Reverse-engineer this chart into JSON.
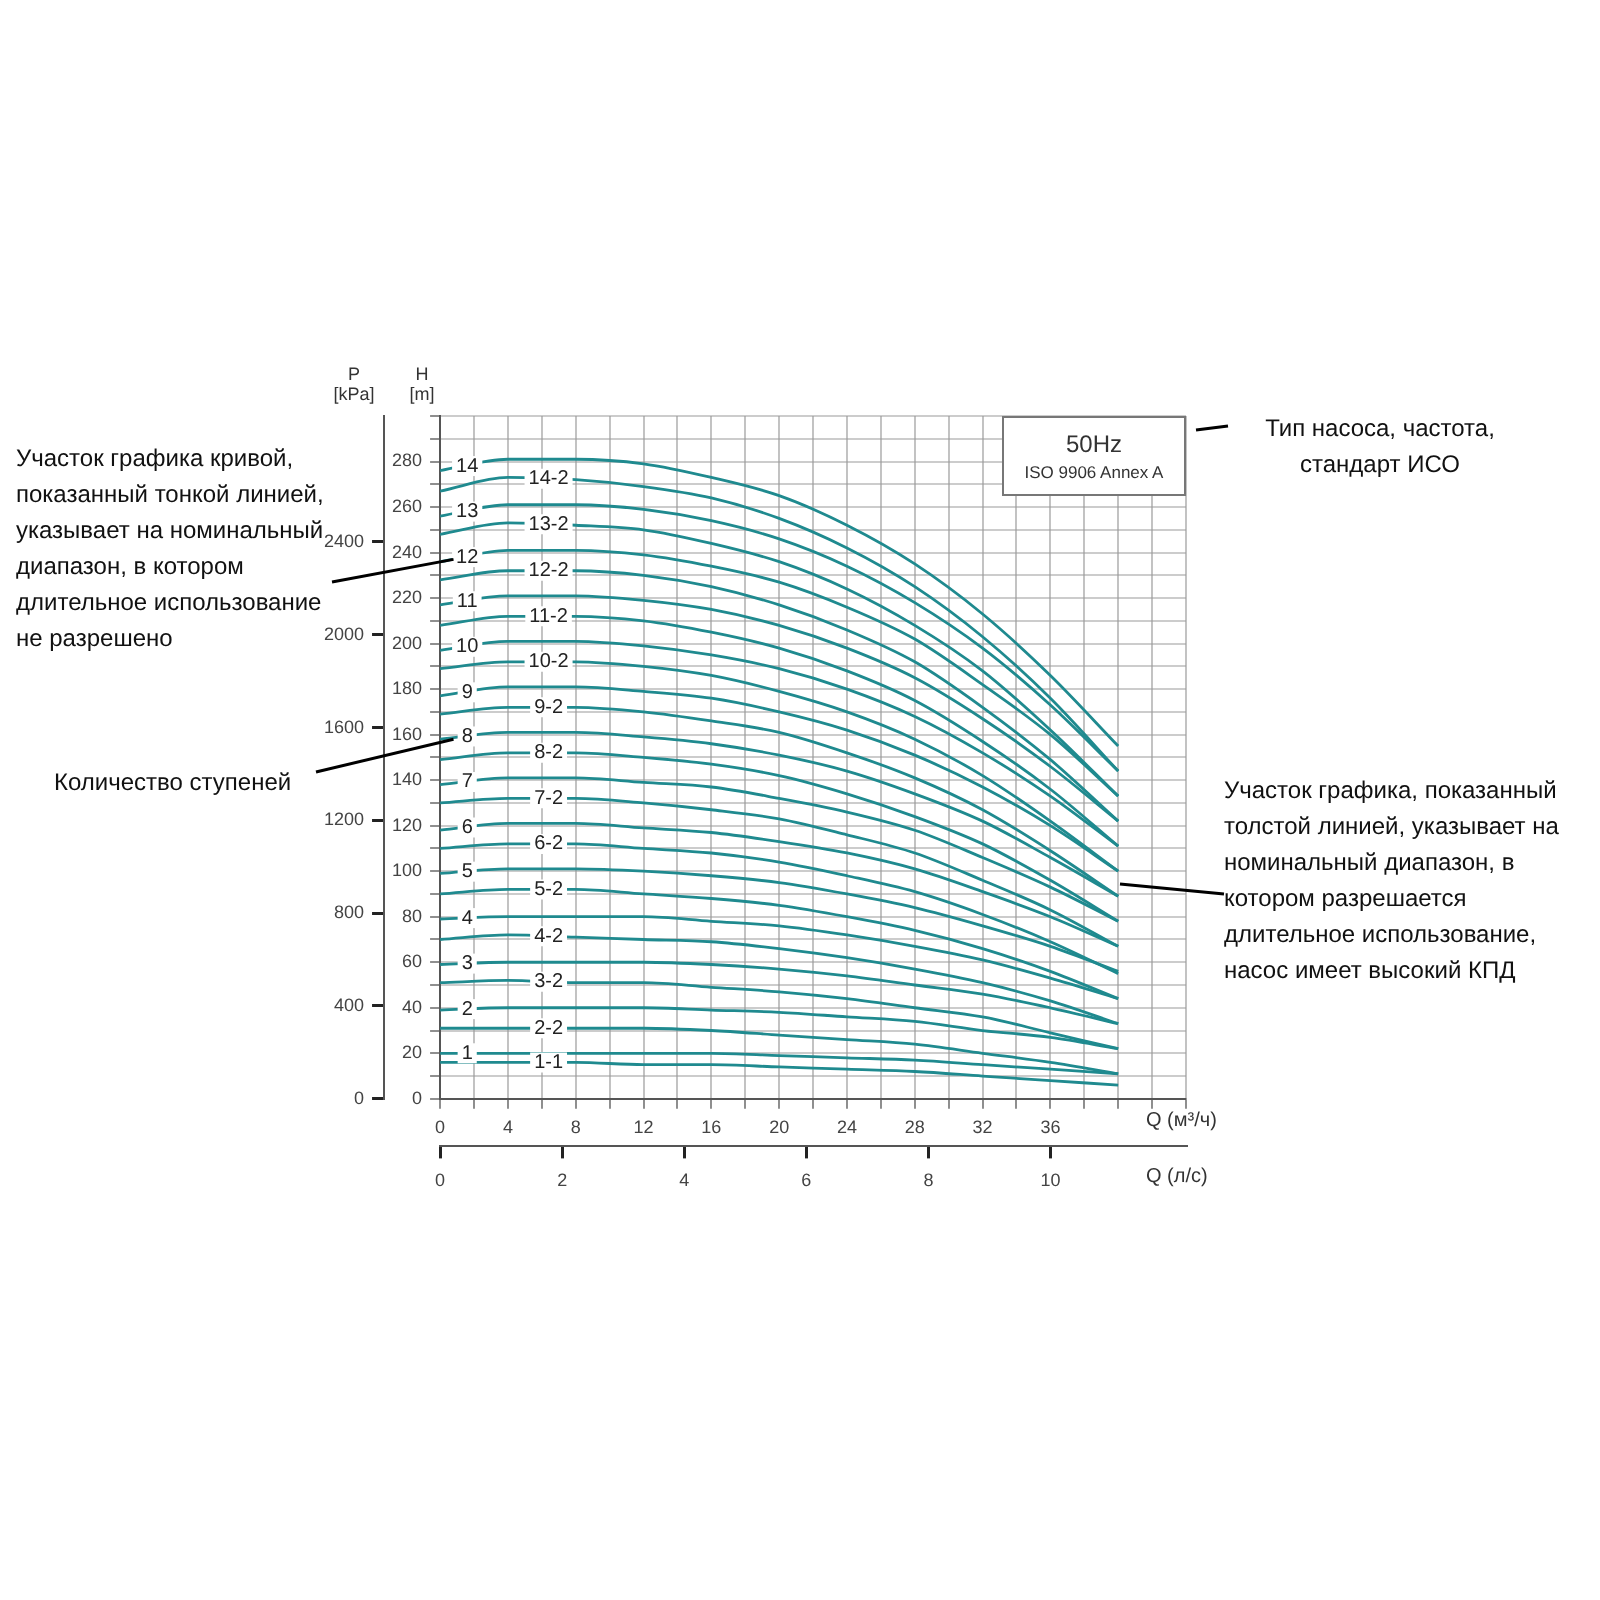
{
  "chart_data": {
    "type": "line",
    "title": "50Hz",
    "subtitle": "ISO 9906 Annex A",
    "xlabel": "Q (м³/ч)",
    "x2label": "Q (л/с)",
    "ylabel": "H [m]",
    "y2label": "P [kPa]",
    "annotations": [
      {
        "text": "Участок графика кривой, показанный тонкой линией, указывает на номинальный диапазон, в котором длительное использование не разрешено",
        "x": 1.5,
        "y": 237
      },
      {
        "text": "Количество ступеней",
        "x": 1.5,
        "y": 158
      },
      "Тип насоса, частота, стандарт ИСО",
      "Участок графика, показанный толстой линией, указывает на номинальный диапазон, в котором разрешается длительное использование, насос имеет высокий КПД"
    ],
    "x": [
      0,
      4,
      8,
      12,
      16,
      20,
      24,
      28,
      32,
      36,
      40
    ],
    "series": [
      {
        "name": "14",
        "color": "#1f8a8f",
        "values": [
          276,
          281,
          281,
          279,
          273,
          265,
          252,
          235,
          213,
          186,
          155
        ]
      },
      {
        "name": "14-2",
        "color": "#1f8a8f",
        "values": [
          267,
          273,
          272,
          269,
          264,
          255,
          242,
          225,
          203,
          176,
          144
        ]
      },
      {
        "name": "13",
        "color": "#1f8a8f",
        "values": [
          256,
          261,
          261,
          259,
          254,
          246,
          234,
          218,
          198,
          173,
          144
        ]
      },
      {
        "name": "13-2",
        "color": "#1f8a8f",
        "values": [
          248,
          253,
          252,
          250,
          244,
          236,
          224,
          208,
          188,
          162,
          133
        ]
      },
      {
        "name": "12",
        "color": "#1f8a8f",
        "values": [
          236,
          241,
          241,
          239,
          234,
          227,
          216,
          202,
          182,
          160,
          133
        ]
      },
      {
        "name": "12-2",
        "color": "#1f8a8f",
        "values": [
          228,
          232,
          232,
          230,
          225,
          217,
          206,
          192,
          172,
          149,
          122
        ]
      },
      {
        "name": "11",
        "color": "#1f8a8f",
        "values": [
          217,
          221,
          221,
          219,
          215,
          208,
          198,
          185,
          167,
          146,
          122
        ]
      },
      {
        "name": "11-2",
        "color": "#1f8a8f",
        "values": [
          208,
          212,
          212,
          210,
          205,
          198,
          188,
          175,
          157,
          136,
          111
        ]
      },
      {
        "name": "10",
        "color": "#1f8a8f",
        "values": [
          197,
          201,
          201,
          199,
          195,
          189,
          180,
          168,
          152,
          133,
          111
        ]
      },
      {
        "name": "10-2",
        "color": "#1f8a8f",
        "values": [
          189,
          192,
          192,
          190,
          186,
          179,
          170,
          158,
          142,
          122,
          100
        ]
      },
      {
        "name": "9",
        "color": "#1f8a8f",
        "values": [
          177,
          181,
          181,
          179,
          176,
          170,
          162,
          151,
          137,
          120,
          100
        ]
      },
      {
        "name": "9-2",
        "color": "#1f8a8f",
        "values": [
          169,
          172,
          172,
          170,
          166,
          161,
          152,
          141,
          127,
          109,
          89
        ]
      },
      {
        "name": "8",
        "color": "#1f8a8f",
        "values": [
          158,
          161,
          161,
          159,
          156,
          151,
          144,
          134,
          122,
          106,
          89
        ]
      },
      {
        "name": "8-2",
        "color": "#1f8a8f",
        "values": [
          149,
          152,
          152,
          150,
          147,
          142,
          134,
          124,
          112,
          96,
          78
        ]
      },
      {
        "name": "7",
        "color": "#1f8a8f",
        "values": [
          138,
          141,
          141,
          139,
          137,
          132,
          126,
          118,
          106,
          93,
          78
        ]
      },
      {
        "name": "7-2",
        "color": "#1f8a8f",
        "values": [
          130,
          132,
          132,
          130,
          127,
          123,
          116,
          108,
          96,
          83,
          67
        ]
      },
      {
        "name": "6",
        "color": "#1f8a8f",
        "values": [
          118,
          121,
          121,
          119,
          117,
          113,
          108,
          101,
          91,
          80,
          67
        ]
      },
      {
        "name": "6-2",
        "color": "#1f8a8f",
        "values": [
          110,
          112,
          112,
          110,
          108,
          104,
          98,
          91,
          81,
          69,
          55
        ]
      },
      {
        "name": "5",
        "color": "#1f8a8f",
        "values": [
          99,
          101,
          101,
          100,
          98,
          95,
          90,
          84,
          76,
          67,
          56
        ]
      },
      {
        "name": "5-2",
        "color": "#1f8a8f",
        "values": [
          90,
          92,
          92,
          90,
          88,
          85,
          80,
          74,
          66,
          56,
          44
        ]
      },
      {
        "name": "4",
        "color": "#1f8a8f",
        "values": [
          79,
          80,
          80,
          80,
          78,
          76,
          72,
          67,
          61,
          53,
          44
        ]
      },
      {
        "name": "4-2",
        "color": "#1f8a8f",
        "values": [
          70,
          72,
          71,
          70,
          69,
          66,
          62,
          57,
          51,
          43,
          33
        ]
      },
      {
        "name": "3",
        "color": "#1f8a8f",
        "values": [
          59,
          60,
          60,
          60,
          59,
          57,
          54,
          50,
          46,
          40,
          33
        ]
      },
      {
        "name": "3-2",
        "color": "#1f8a8f",
        "values": [
          51,
          52,
          51,
          51,
          49,
          47,
          44,
          40,
          36,
          29,
          22
        ]
      },
      {
        "name": "2",
        "color": "#1f8a8f",
        "values": [
          39,
          40,
          40,
          40,
          39,
          38,
          36,
          34,
          30,
          27,
          22
        ]
      },
      {
        "name": "2-2",
        "color": "#1f8a8f",
        "values": [
          31,
          31,
          31,
          31,
          30,
          28,
          26,
          24,
          20,
          16,
          11
        ]
      },
      {
        "name": "1",
        "color": "#1f8a8f",
        "values": [
          20,
          20,
          20,
          20,
          20,
          19,
          18,
          17,
          15,
          13,
          11
        ]
      },
      {
        "name": "1-1",
        "color": "#1f8a8f",
        "values": [
          16,
          16,
          16,
          15,
          15,
          14,
          13,
          12,
          10,
          8,
          6
        ]
      }
    ],
    "xlim": [
      0,
      44
    ],
    "xticks": [
      0,
      {
        "value": 2,
        "label": null
      },
      4,
      {
        "value": 6,
        "label": null
      },
      8,
      {
        "value": 10,
        "label": null
      },
      12,
      {
        "value": 14,
        "label": null
      },
      16,
      {
        "value": 18,
        "label": null
      },
      20,
      {
        "value": 22,
        "label": null
      },
      24,
      {
        "value": 26,
        "label": null
      },
      28,
      {
        "value": 30,
        "label": null
      },
      32,
      {
        "value": 34,
        "label": null
      },
      36,
      {
        "value": 38,
        "label": null
      },
      {
        "value": 40,
        "label": null
      },
      {
        "value": 42,
        "label": null
      },
      {
        "value": 44,
        "label": null
      }
    ],
    "x2lim": [
      0,
      12.22
    ],
    "x2ticks": [
      0,
      2,
      4,
      6,
      8,
      10
    ],
    "ylim": [
      0,
      300
    ],
    "yticks": [
      0,
      {
        "value": 10,
        "label": null
      },
      20,
      {
        "value": 30,
        "label": null
      },
      40,
      {
        "value": 50,
        "label": null
      },
      60,
      {
        "value": 70,
        "label": null
      },
      80,
      {
        "value": 90,
        "label": null
      },
      100,
      {
        "value": 110,
        "label": null
      },
      120,
      {
        "value": 130,
        "label": null
      },
      140,
      {
        "value": 150,
        "label": null
      },
      160,
      {
        "value": 170,
        "label": null
      },
      180,
      {
        "value": 190,
        "label": null
      },
      200,
      {
        "value": 210,
        "label": null
      },
      220,
      {
        "value": 230,
        "label": null
      },
      240,
      {
        "value": 250,
        "label": null
      },
      260,
      {
        "value": 270,
        "label": null
      },
      280,
      {
        "value": 290,
        "label": null
      },
      {
        "value": 300,
        "label": null
      }
    ],
    "y2lim": [
      0,
      2943
    ],
    "y2ticks": [
      0,
      400,
      800,
      1200,
      1600,
      2000,
      2400
    ],
    "grid": true
  }
}
